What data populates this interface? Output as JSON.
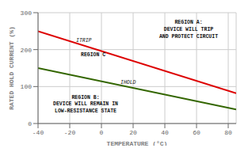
{
  "chart_data": {
    "type": "line",
    "xlabel": "TEMPERATURE (°C)",
    "ylabel": "RATED HOLD CURRENT (%)",
    "xlim": [
      -40,
      85
    ],
    "ylim": [
      0,
      300
    ],
    "xticks": [
      -40,
      -20,
      0,
      20,
      40,
      60,
      80
    ],
    "yticks": [
      0,
      100,
      200,
      300
    ],
    "grid": true,
    "series": [
      {
        "name": "ITRIP",
        "color": "#dd0000",
        "x": [
          -40,
          85
        ],
        "values": [
          250,
          82
        ]
      },
      {
        "name": "IHOLD",
        "color": "#336600",
        "x": [
          -40,
          85
        ],
        "values": [
          150,
          38
        ]
      }
    ],
    "annotations": [
      {
        "text": "REGION A:\nDEVICE WILL TRIP\nAND PROTECT CIRCUIT",
        "x": 55,
        "y": 282
      },
      {
        "text": "REGION B:\nDEVICE WILL REMAIN IN\nLOW-RESISTANCE STATE",
        "x": -10,
        "y": 80
      },
      {
        "text": "REGION C",
        "x": -13,
        "y": 185
      },
      {
        "text": "ITRIP",
        "x": -16,
        "y": 224
      },
      {
        "text": "IHOLD",
        "x": 12,
        "y": 110
      }
    ]
  }
}
